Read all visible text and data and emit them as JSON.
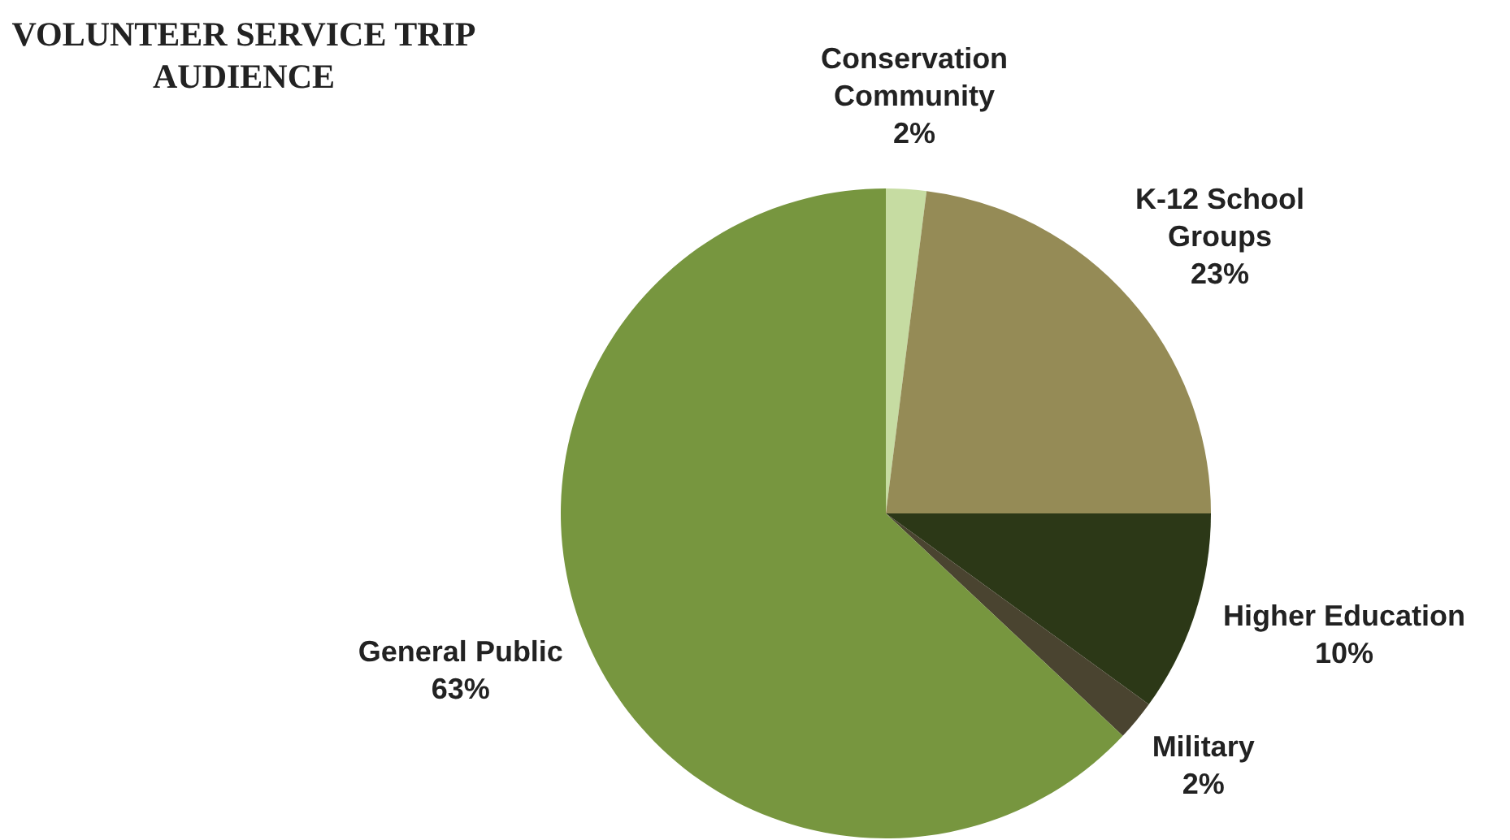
{
  "chart_data": {
    "type": "pie",
    "title": "VOLUNTEER SERVICE TRIP AUDIENCE",
    "categories": [
      "Conservation Community",
      "K-12 School Groups",
      "Higher Education",
      "Military",
      "General Public"
    ],
    "values": [
      2,
      23,
      10,
      2,
      63
    ],
    "colors": [
      "#c6dca2",
      "#958b56",
      "#2c3817",
      "#4a4430",
      "#77963f"
    ],
    "value_labels": [
      "2%",
      "23%",
      "10%",
      "2%",
      "63%"
    ]
  }
}
